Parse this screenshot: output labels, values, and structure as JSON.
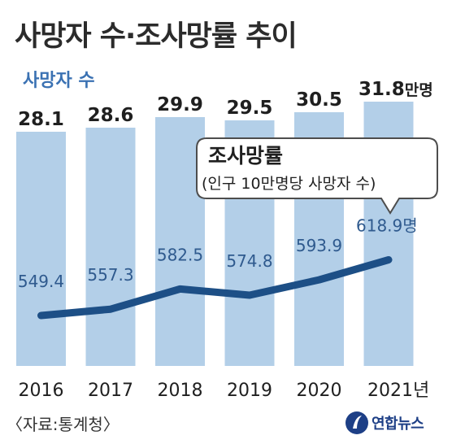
{
  "title": "사망자 수·조사망률 추이",
  "source": "〈자료:통계청〉",
  "logo": {
    "text": "연합뉴스",
    "icon": "yonhap-logo-icon"
  },
  "chart_data": {
    "type": "bar",
    "categories": [
      "2016",
      "2017",
      "2018",
      "2019",
      "2020",
      "2021"
    ],
    "last_category_suffix": "년",
    "series": [
      {
        "name": "사망자 수",
        "type": "bar",
        "unit_suffix": "만명",
        "values": [
          28.1,
          28.6,
          29.9,
          29.5,
          30.5,
          31.8
        ],
        "color": "#b3cfe8"
      },
      {
        "name": "조사망률",
        "subtitle": "(인구 10만명당 사망자 수)",
        "type": "line",
        "unit_suffix": "명",
        "values": [
          549.4,
          557.3,
          582.5,
          574.8,
          593.9,
          618.9
        ],
        "color": "#1d4f86"
      }
    ],
    "xlabel": "",
    "ylabel": "",
    "grid": false
  }
}
